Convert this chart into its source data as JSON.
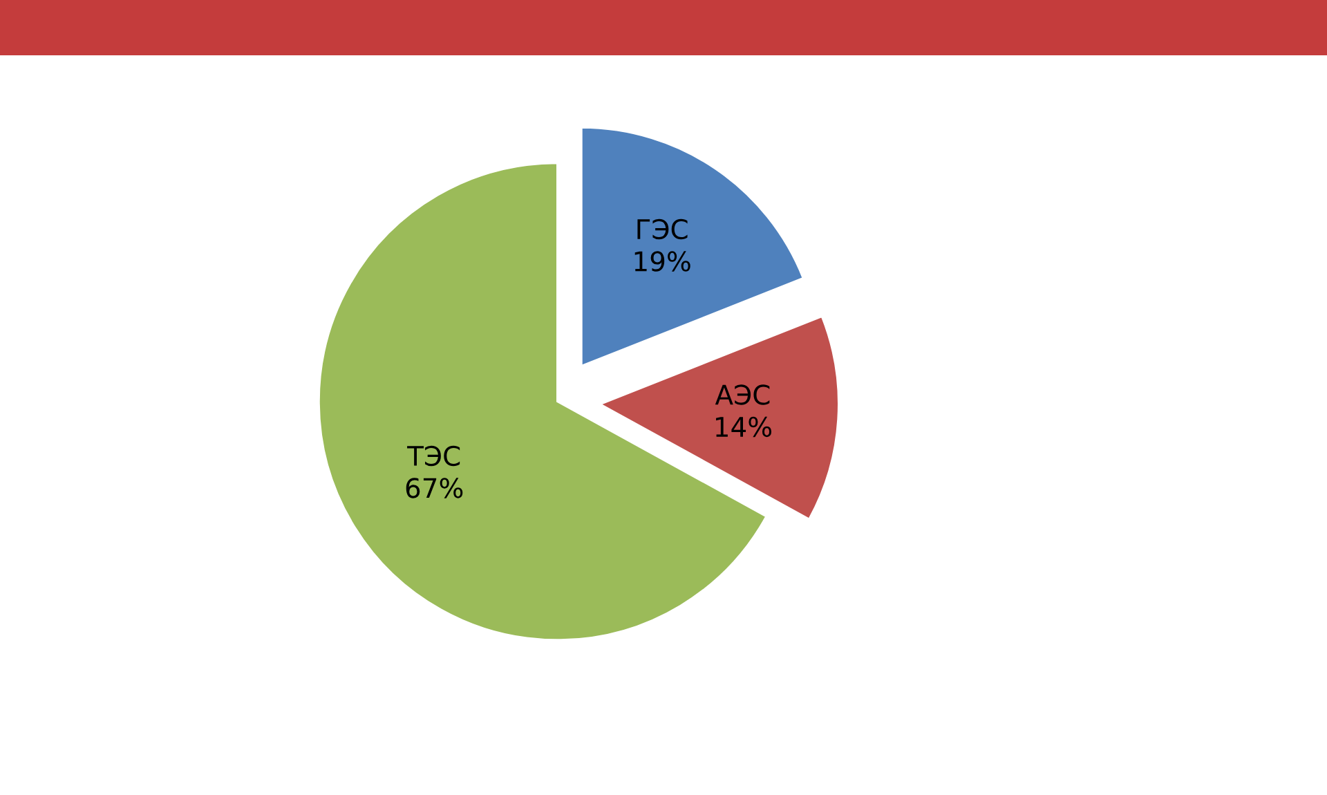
{
  "chart_data": {
    "type": "pie",
    "categories": [
      "ГЭС",
      "АЭС",
      "ТЭС"
    ],
    "values": [
      19,
      14,
      67
    ],
    "colors": [
      "#4f81bd",
      "#c0504d",
      "#9bbb59"
    ],
    "value_labels": [
      "19%",
      "14%",
      "67%"
    ]
  }
}
